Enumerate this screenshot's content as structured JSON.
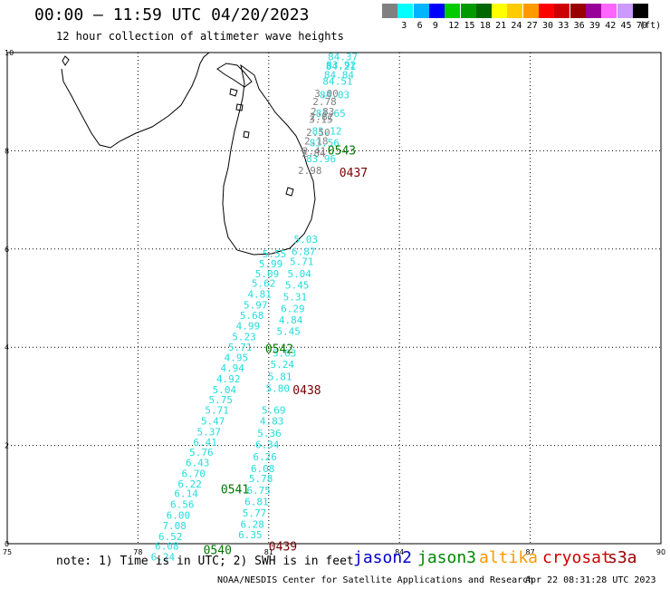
{
  "header": {
    "title": "00:00 – 11:59 UTC 04/20/2023",
    "subtitle": "12 hour collection of altimeter wave heights"
  },
  "color_scale": {
    "unit": "(ft)",
    "bins": [
      {
        "label": "",
        "color": "#808080"
      },
      {
        "label": "3",
        "color": "#00ffff"
      },
      {
        "label": "6",
        "color": "#00b4ff"
      },
      {
        "label": "9",
        "color": "#0000ff"
      },
      {
        "label": "12",
        "color": "#00cc00"
      },
      {
        "label": "15",
        "color": "#009900"
      },
      {
        "label": "18",
        "color": "#006600"
      },
      {
        "label": "21",
        "color": "#ffff00"
      },
      {
        "label": "24",
        "color": "#ffcc00"
      },
      {
        "label": "27",
        "color": "#ff9900"
      },
      {
        "label": "30",
        "color": "#ff0000"
      },
      {
        "label": "33",
        "color": "#cc0000"
      },
      {
        "label": "36",
        "color": "#990000"
      },
      {
        "label": "39",
        "color": "#990099"
      },
      {
        "label": "42",
        "color": "#ff66ff"
      },
      {
        "label": "45",
        "color": "#cc99ff"
      },
      {
        "label": "70",
        "color": "#000000"
      }
    ]
  },
  "map_axes": {
    "lon_ticks": [
      "75",
      "78",
      "81",
      "84",
      "87",
      "90"
    ],
    "lat_ticks": [
      "0",
      "2",
      "4",
      "6",
      "8",
      "10"
    ],
    "lon_range": [
      75,
      90
    ],
    "lat_range": [
      0,
      10
    ],
    "grid": true
  },
  "colors": {
    "cyan": "#22dddd",
    "grey": "#808080",
    "green": "#007700",
    "darkred": "#770000",
    "coast": "#000000"
  },
  "tracks": [
    {
      "name": "track-a",
      "color": "cyan",
      "readings": [
        [
          "84.37",
          9.92
        ],
        [
          "83.92",
          9.75
        ],
        [
          "84.21",
          9.72
        ],
        [
          "84.84",
          9.55
        ],
        [
          "84.51",
          9.42
        ],
        [
          "84.03",
          9.14
        ],
        [
          "83.65",
          8.76
        ],
        [
          "83.12",
          8.4
        ],
        [
          "83.56",
          8.16
        ],
        [
          "83.96",
          7.84
        ]
      ]
    },
    {
      "name": "track-a-grey",
      "color": "grey",
      "readings": [
        [
          "3.00",
          9.17
        ],
        [
          "2.78",
          9.0
        ],
        [
          "2.83",
          8.8
        ],
        [
          "2.82",
          8.7
        ],
        [
          "3.15",
          8.64
        ],
        [
          "2.50",
          8.38
        ],
        [
          "2.18",
          8.2
        ],
        [
          "2.41",
          8.0
        ],
        [
          "2.84",
          7.95
        ],
        [
          "2.98",
          7.6
        ]
      ]
    },
    {
      "name": "track-b",
      "color": "cyan",
      "readings": [
        [
          "5.03",
          6.2
        ],
        [
          "6.87",
          5.95
        ],
        [
          "5.71",
          5.75
        ],
        [
          "5.04",
          5.5
        ],
        [
          "5.45",
          5.27
        ],
        [
          "5.31",
          5.03
        ],
        [
          "6.29",
          4.79
        ],
        [
          "4.84",
          4.56
        ],
        [
          "5.45",
          4.33
        ],
        [
          "5.63",
          3.88
        ],
        [
          "5.24",
          3.65
        ],
        [
          "5.81",
          3.4
        ],
        [
          "5.80",
          3.16
        ],
        [
          "5.69",
          2.72
        ],
        [
          "4.83",
          2.5
        ],
        [
          "5.36",
          2.25
        ],
        [
          "6.34",
          2.02
        ],
        [
          "6.26",
          1.77
        ],
        [
          "6.08",
          1.53
        ],
        [
          "5.78",
          1.33
        ],
        [
          "6.75",
          1.09
        ],
        [
          "6.81",
          0.86
        ],
        [
          "5.77",
          0.63
        ],
        [
          "6.28",
          0.4
        ],
        [
          "6.35",
          0.18
        ]
      ]
    },
    {
      "name": "track-c",
      "color": "cyan",
      "readings": [
        [
          "5.55",
          5.9
        ],
        [
          "5.99",
          5.7
        ],
        [
          "5.09",
          5.5
        ],
        [
          "5.62",
          5.3
        ],
        [
          "4.81",
          5.08
        ],
        [
          "5.97",
          4.86
        ],
        [
          "5.68",
          4.65
        ],
        [
          "4.99",
          4.44
        ],
        [
          "5.23",
          4.22
        ],
        [
          "5.71",
          4.0
        ],
        [
          "4.95",
          3.79
        ],
        [
          "4.94",
          3.58
        ],
        [
          "4.92",
          3.36
        ],
        [
          "5.04",
          3.14
        ],
        [
          "5.75",
          2.93
        ],
        [
          "5.71",
          2.72
        ],
        [
          "5.47",
          2.5
        ],
        [
          "5.37",
          2.28
        ],
        [
          "6.41",
          2.07
        ],
        [
          "5.76",
          1.86
        ],
        [
          "6.43",
          1.65
        ],
        [
          "6.70",
          1.43
        ],
        [
          "6.22",
          1.22
        ],
        [
          "6.14",
          1.02
        ],
        [
          "6.56",
          0.8
        ],
        [
          "6.00",
          0.58
        ],
        [
          "7.08",
          0.37
        ],
        [
          "6.52",
          0.15
        ],
        [
          "6.08",
          -0.05
        ],
        [
          "6.24",
          -0.27
        ]
      ]
    }
  ],
  "pass_times": [
    {
      "text": "0543",
      "color": "green",
      "lon": 82.35,
      "lat": 8.02
    },
    {
      "text": "0437",
      "color": "darkred",
      "lon": 82.62,
      "lat": 7.56
    },
    {
      "text": "0542",
      "color": "green",
      "lon": 80.92,
      "lat": 3.98
    },
    {
      "text": "0438",
      "color": "darkred",
      "lon": 81.55,
      "lat": 3.14
    },
    {
      "text": "0541",
      "color": "green",
      "lon": 79.9,
      "lat": 1.12
    },
    {
      "text": "0540",
      "color": "green",
      "lon": 79.5,
      "lat": -0.12
    },
    {
      "text": "0439",
      "color": "darkred",
      "lon": 81.0,
      "lat": -0.05
    }
  ],
  "footer": {
    "note": "note:  1) Time is in UTC;  2) SWH is in feet",
    "satellites": [
      {
        "label": "jason2",
        "color": "#0000cc"
      },
      {
        "label": "jason3",
        "color": "#008800"
      },
      {
        "label": "altika",
        "color": "#ff9900"
      },
      {
        "label": "cryosat",
        "color": "#cc0000"
      },
      {
        "label": "s3a",
        "color": "#990000"
      }
    ],
    "credit": "NOAA/NESDIS Center for Satellite Applications and Research",
    "timestamp": "Apr 22 08:31:28 UTC 2023"
  }
}
